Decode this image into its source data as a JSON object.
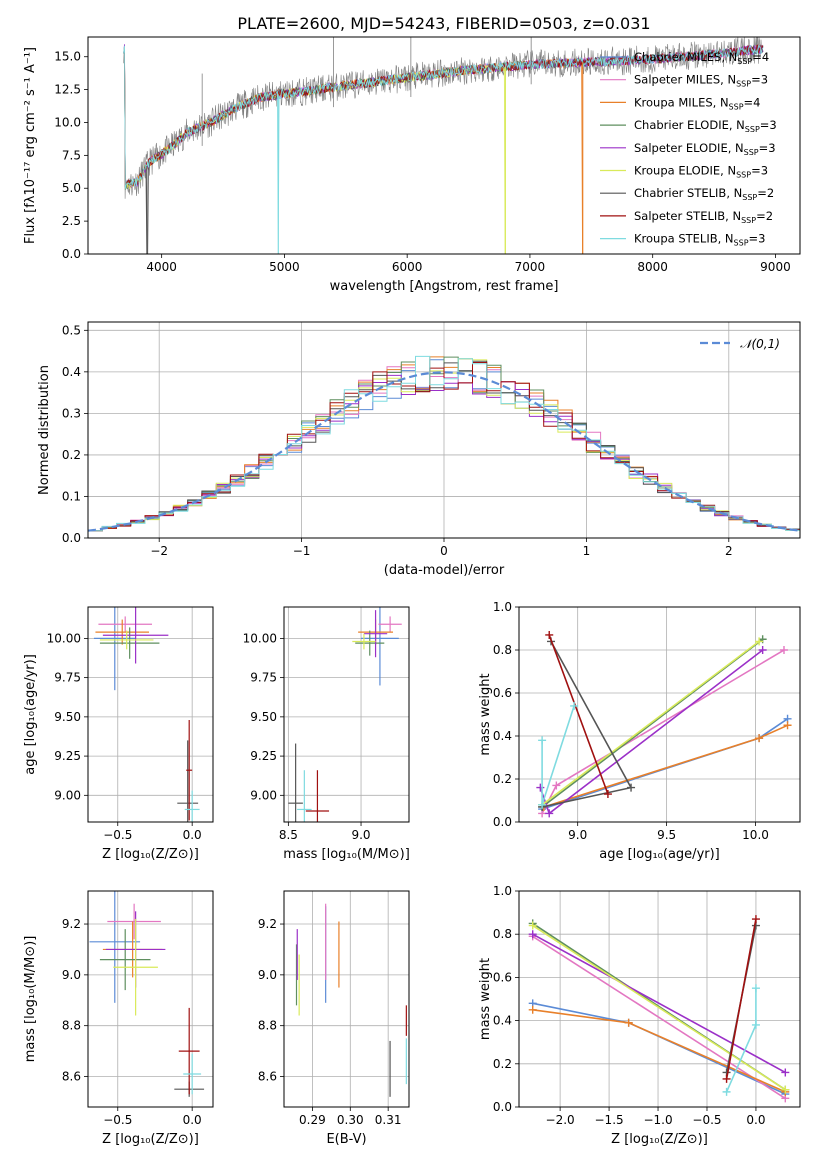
{
  "figure": {
    "title": "PLATE=2600, MJD=54243, FIBERID=0503, z=0.031"
  },
  "colors": {
    "Chabrier MILES": "#5b8bd6",
    "Salpeter MILES": "#e377c2",
    "Kroupa MILES": "#e8802a",
    "Chabrier ELODIE": "#5f8f5f",
    "Salpeter ELODIE": "#9b30c8",
    "Kroupa ELODIE": "#d9ea5a",
    "Chabrier STELIB": "#555555",
    "Salpeter STELIB": "#a01010",
    "Kroupa STELIB": "#7fdbe0",
    "data": "#808080",
    "normal": "#5b8bd6"
  },
  "chart_data": [
    {
      "type": "line",
      "title": "PLATE=2600, MJD=54243, FIBERID=0503, z=0.031",
      "xlabel": "wavelength [Angstrom, rest frame]",
      "ylabel": "Flux [fλ10⁻¹⁷ erg cm⁻² s⁻¹ A⁻¹]",
      "xlim": [
        3400,
        9200
      ],
      "ylim": [
        0,
        16.5
      ],
      "xticks": [
        4000,
        5000,
        6000,
        7000,
        8000,
        9000
      ],
      "yticks": [
        0.0,
        2.5,
        5.0,
        7.5,
        10.0,
        12.5,
        15.0
      ],
      "legend_position": "top-right",
      "legend": [
        {
          "label": "Chabrier MILES, N",
          "sub": "SSP",
          "tail": "=4",
          "key": "Chabrier MILES"
        },
        {
          "label": "Salpeter MILES, N",
          "sub": "SSP",
          "tail": "=3",
          "key": "Salpeter MILES"
        },
        {
          "label": "Kroupa MILES, N",
          "sub": "SSP",
          "tail": "=4",
          "key": "Kroupa MILES"
        },
        {
          "label": "Chabrier ELODIE, N",
          "sub": "SSP",
          "tail": "=3",
          "key": "Chabrier ELODIE"
        },
        {
          "label": "Salpeter ELODIE, N",
          "sub": "SSP",
          "tail": "=3",
          "key": "Salpeter ELODIE"
        },
        {
          "label": "Kroupa ELODIE, N",
          "sub": "SSP",
          "tail": "=3",
          "key": "Kroupa ELODIE"
        },
        {
          "label": "Chabrier STELIB, N",
          "sub": "SSP",
          "tail": "=2",
          "key": "Chabrier STELIB"
        },
        {
          "label": "Salpeter STELIB, N",
          "sub": "SSP",
          "tail": "=2",
          "key": "Salpeter STELIB"
        },
        {
          "label": "Kroupa STELIB, N",
          "sub": "SSP",
          "tail": "=3",
          "key": "Kroupa STELIB"
        }
      ],
      "continuum": [
        [
          3700,
          5.2
        ],
        [
          3800,
          5.5
        ],
        [
          3900,
          7.0
        ],
        [
          4000,
          7.6
        ],
        [
          4100,
          8.3
        ],
        [
          4200,
          9.2
        ],
        [
          4400,
          10.0
        ],
        [
          4600,
          11.1
        ],
        [
          4800,
          11.9
        ],
        [
          5000,
          12.2
        ],
        [
          5200,
          12.4
        ],
        [
          5500,
          12.8
        ],
        [
          6000,
          13.4
        ],
        [
          6500,
          14.0
        ],
        [
          7000,
          14.4
        ],
        [
          7500,
          14.6
        ],
        [
          8000,
          14.8
        ],
        [
          8500,
          15.2
        ],
        [
          8900,
          15.6
        ]
      ],
      "sharp_dips": [
        {
          "x": 3880,
          "y": 0.0,
          "series": "Chabrier STELIB"
        },
        {
          "x": 4950,
          "y": 0.0,
          "series": "Kroupa STELIB"
        },
        {
          "x": 6800,
          "y": 0.0,
          "series": "Kroupa ELODIE"
        },
        {
          "x": 7430,
          "y": 0.0,
          "series": "Kroupa MILES"
        }
      ],
      "model_end": {
        "Kroupa STELIB": 8900,
        "Kroupa ELODIE": 6800,
        "Kroupa MILES": 7430
      }
    },
    {
      "type": "histogram",
      "xlabel": "(data-model)/error",
      "ylabel": "Normed distribution",
      "xlim": [
        -2.5,
        2.5
      ],
      "ylim": [
        0,
        0.52
      ],
      "xticks": [
        -2,
        -1,
        0,
        1,
        2
      ],
      "yticks": [
        0.0,
        0.1,
        0.2,
        0.3,
        0.4,
        0.5
      ],
      "bin_width": 0.1,
      "envelope": "gaussian",
      "legend": [
        {
          "label": "𝒩(0,1)",
          "style": "dashed",
          "key": "normal"
        }
      ],
      "legend_position": "top-right"
    },
    {
      "type": "scatter",
      "xlabel": "Z [log₁₀(Z/Z⊙)]",
      "ylabel": "age  [log₁₀(age/yr)]",
      "xlim": [
        -0.7,
        0.14
      ],
      "ylim": [
        8.83,
        10.2
      ],
      "xticks": [
        -0.5,
        0.0
      ],
      "yticks": [
        9.0,
        9.25,
        9.5,
        9.75,
        10.0
      ],
      "points": [
        {
          "series": "Chabrier MILES",
          "x": -0.52,
          "y": 10.0,
          "xerr": 0.14,
          "yerr": 0.33
        },
        {
          "series": "Salpeter MILES",
          "x": -0.45,
          "y": 10.09,
          "xerr": 0.18,
          "yerr": 0.05
        },
        {
          "series": "Kroupa MILES",
          "x": -0.47,
          "y": 10.04,
          "xerr": 0.18,
          "yerr": 0.08
        },
        {
          "series": "Chabrier ELODIE",
          "x": -0.42,
          "y": 9.97,
          "xerr": 0.2,
          "yerr": 0.1
        },
        {
          "series": "Salpeter ELODIE",
          "x": -0.38,
          "y": 10.02,
          "xerr": 0.22,
          "yerr": 0.18
        },
        {
          "series": "Kroupa ELODIE",
          "x": -0.44,
          "y": 9.99,
          "xerr": 0.18,
          "yerr": 0.06
        },
        {
          "series": "Chabrier STELIB",
          "x": -0.03,
          "y": 8.95,
          "xerr": 0.07,
          "yerr": 0.4
        },
        {
          "series": "Salpeter STELIB",
          "x": -0.02,
          "y": 9.16,
          "xerr": 0.02,
          "yerr": 0.32
        },
        {
          "series": "Kroupa STELIB",
          "x": 0.0,
          "y": 8.91,
          "xerr": 0.05,
          "yerr": 0.12
        }
      ]
    },
    {
      "type": "scatter",
      "xlabel": "mass [log₁₀(M/M⊙)]",
      "ylabel": "",
      "xlim": [
        8.47,
        9.33
      ],
      "ylim": [
        8.83,
        10.2
      ],
      "xticks": [
        8.5,
        9.0
      ],
      "yticks": [
        9.0,
        9.25,
        9.5,
        9.75,
        10.0
      ],
      "points": [
        {
          "series": "Chabrier MILES",
          "x": 9.13,
          "y": 10.0,
          "xerr": 0.13,
          "yerr": 0.3
        },
        {
          "series": "Salpeter MILES",
          "x": 9.2,
          "y": 10.09,
          "xerr": 0.08,
          "yerr": 0.05
        },
        {
          "series": "Kroupa MILES",
          "x": 9.1,
          "y": 10.04,
          "xerr": 0.12,
          "yerr": 0.08
        },
        {
          "series": "Chabrier ELODIE",
          "x": 9.06,
          "y": 9.97,
          "xerr": 0.1,
          "yerr": 0.08
        },
        {
          "series": "Salpeter ELODIE",
          "x": 9.1,
          "y": 10.03,
          "xerr": 0.08,
          "yerr": 0.15
        },
        {
          "series": "Kroupa ELODIE",
          "x": 9.02,
          "y": 9.98,
          "xerr": 0.08,
          "yerr": 0.05
        },
        {
          "series": "Chabrier STELIB",
          "x": 8.55,
          "y": 8.95,
          "xerr": 0.05,
          "yerr": 0.38
        },
        {
          "series": "Salpeter STELIB",
          "x": 8.7,
          "y": 8.9,
          "xerr": 0.08,
          "yerr": 0.26
        },
        {
          "series": "Kroupa STELIB",
          "x": 8.61,
          "y": 8.91,
          "xerr": 0.05,
          "yerr": 0.25
        }
      ]
    },
    {
      "type": "line",
      "xlabel": "age  [log₁₀(age/yr)]",
      "ylabel": "mass weight",
      "xlim": [
        8.67,
        10.25
      ],
      "ylim": [
        0,
        1.0
      ],
      "xticks": [
        9.0,
        9.5,
        10.0
      ],
      "yticks": [
        0.0,
        0.2,
        0.4,
        0.6,
        0.8,
        1.0
      ],
      "series": [
        {
          "name": "Chabrier MILES",
          "points": [
            [
              8.8,
              0.06
            ],
            [
              10.02,
              0.39
            ],
            [
              10.18,
              0.48
            ]
          ]
        },
        {
          "name": "Salpeter MILES",
          "points": [
            [
              8.8,
              0.04
            ],
            [
              8.88,
              0.17
            ],
            [
              10.16,
              0.8
            ]
          ]
        },
        {
          "name": "Kroupa MILES",
          "points": [
            [
              8.81,
              0.07
            ],
            [
              10.02,
              0.39
            ],
            [
              10.18,
              0.45
            ]
          ]
        },
        {
          "name": "Chabrier ELODIE",
          "points": [
            [
              8.8,
              0.07
            ],
            [
              10.04,
              0.85
            ]
          ]
        },
        {
          "name": "Salpeter ELODIE",
          "points": [
            [
              8.79,
              0.16
            ],
            [
              8.84,
              0.04
            ],
            [
              10.04,
              0.8
            ]
          ]
        },
        {
          "name": "Kroupa ELODIE",
          "points": [
            [
              8.8,
              0.08
            ],
            [
              10.02,
              0.84
            ]
          ]
        },
        {
          "name": "Chabrier STELIB",
          "points": [
            [
              8.85,
              0.84
            ],
            [
              9.3,
              0.16
            ],
            [
              8.8,
              0.07
            ]
          ]
        },
        {
          "name": "Salpeter STELIB",
          "points": [
            [
              8.84,
              0.87
            ],
            [
              9.17,
              0.13
            ]
          ]
        },
        {
          "name": "Kroupa STELIB",
          "points": [
            [
              8.8,
              0.38
            ],
            [
              8.8,
              0.08
            ],
            [
              8.98,
              0.54
            ]
          ]
        }
      ]
    },
    {
      "type": "scatter",
      "xlabel": "Z [log₁₀(Z/Z⊙)]",
      "ylabel": "mass [log₁₀(M/M⊙)]",
      "xlim": [
        -0.7,
        0.14
      ],
      "ylim": [
        8.48,
        9.33
      ],
      "xticks": [
        -0.5,
        0.0
      ],
      "yticks": [
        8.6,
        8.8,
        9.0,
        9.2
      ],
      "points": [
        {
          "series": "Chabrier MILES",
          "x": -0.52,
          "y": 9.13,
          "xerr": 0.17,
          "yerr": 0.24
        },
        {
          "series": "Salpeter MILES",
          "x": -0.39,
          "y": 9.21,
          "xerr": 0.18,
          "yerr": 0.07
        },
        {
          "series": "Kroupa MILES",
          "x": -0.4,
          "y": 9.1,
          "xerr": 0.2,
          "yerr": 0.11
        },
        {
          "series": "Chabrier ELODIE",
          "x": -0.45,
          "y": 9.06,
          "xerr": 0.17,
          "yerr": 0.12
        },
        {
          "series": "Salpeter ELODIE",
          "x": -0.38,
          "y": 9.1,
          "xerr": 0.2,
          "yerr": 0.15
        },
        {
          "series": "Kroupa ELODIE",
          "x": -0.38,
          "y": 9.03,
          "xerr": 0.15,
          "yerr": 0.19
        },
        {
          "series": "Chabrier STELIB",
          "x": -0.02,
          "y": 8.55,
          "xerr": 0.1,
          "yerr": 0.03
        },
        {
          "series": "Salpeter STELIB",
          "x": -0.02,
          "y": 8.7,
          "xerr": 0.07,
          "yerr": 0.17
        },
        {
          "series": "Kroupa STELIB",
          "x": 0.0,
          "y": 8.61,
          "xerr": 0.06,
          "yerr": 0.08
        }
      ]
    },
    {
      "type": "scatter",
      "xlabel": "E(B-V)",
      "ylabel": "",
      "xlim": [
        0.2825,
        0.3155
      ],
      "ylim": [
        8.48,
        9.33
      ],
      "xticks": [
        0.29,
        0.3,
        0.31
      ],
      "xtick_labels": [
        "0.29",
        "0.30",
        "0.31"
      ],
      "yticks": [
        8.6,
        8.8,
        9.0,
        9.2
      ],
      "points": [
        {
          "series": "Chabrier MILES",
          "x": 0.2935,
          "y": 9.08,
          "xerr": 0.0,
          "yerr": 0.19
        },
        {
          "series": "Salpeter MILES",
          "x": 0.2935,
          "y": 9.13,
          "xerr": 0.0,
          "yerr": 0.15
        },
        {
          "series": "Kroupa MILES",
          "x": 0.297,
          "y": 9.08,
          "xerr": 0.0,
          "yerr": 0.13
        },
        {
          "series": "Chabrier ELODIE",
          "x": 0.2858,
          "y": 9.0,
          "xerr": 0.0,
          "yerr": 0.12
        },
        {
          "series": "Salpeter ELODIE",
          "x": 0.286,
          "y": 9.08,
          "xerr": 0.0,
          "yerr": 0.1
        },
        {
          "series": "Kroupa ELODIE",
          "x": 0.2865,
          "y": 8.96,
          "xerr": 0.0,
          "yerr": 0.12
        },
        {
          "series": "Chabrier STELIB",
          "x": 0.3105,
          "y": 8.63,
          "xerr": 0.0,
          "yerr": 0.11
        },
        {
          "series": "Salpeter STELIB",
          "x": 0.3148,
          "y": 8.82,
          "xerr": 0.0,
          "yerr": 0.06
        },
        {
          "series": "Kroupa STELIB",
          "x": 0.3148,
          "y": 8.66,
          "xerr": 0.0,
          "yerr": 0.09
        }
      ]
    },
    {
      "type": "line",
      "xlabel": "Z [log₁₀(Z/Z⊙)]",
      "ylabel": "mass weight",
      "xlim": [
        -2.42,
        0.45
      ],
      "ylim": [
        0,
        1.0
      ],
      "xticks": [
        -2.0,
        -1.5,
        -1.0,
        -0.5,
        0.0
      ],
      "yticks": [
        0.0,
        0.2,
        0.4,
        0.6,
        0.8,
        1.0
      ],
      "series": [
        {
          "name": "Chabrier MILES",
          "points": [
            [
              -2.28,
              0.48
            ],
            [
              -1.3,
              0.39
            ],
            [
              0.3,
              0.06
            ]
          ]
        },
        {
          "name": "Salpeter MILES",
          "points": [
            [
              -2.28,
              0.79
            ],
            [
              0.3,
              0.04
            ]
          ]
        },
        {
          "name": "Kroupa MILES",
          "points": [
            [
              -2.28,
              0.45
            ],
            [
              -1.3,
              0.39
            ],
            [
              0.3,
              0.07
            ]
          ]
        },
        {
          "name": "Chabrier ELODIE",
          "points": [
            [
              -2.28,
              0.85
            ],
            [
              0.3,
              0.08
            ]
          ]
        },
        {
          "name": "Salpeter ELODIE",
          "points": [
            [
              -2.28,
              0.8
            ],
            [
              0.3,
              0.16
            ]
          ]
        },
        {
          "name": "Kroupa ELODIE",
          "points": [
            [
              -2.28,
              0.84
            ],
            [
              0.3,
              0.08
            ]
          ]
        },
        {
          "name": "Chabrier STELIB",
          "points": [
            [
              -0.3,
              0.16
            ],
            [
              0.0,
              0.84
            ]
          ]
        },
        {
          "name": "Salpeter STELIB",
          "points": [
            [
              -0.3,
              0.13
            ],
            [
              0.0,
              0.87
            ]
          ]
        },
        {
          "name": "Kroupa STELIB",
          "points": [
            [
              -0.3,
              0.07
            ],
            [
              0.0,
              0.38
            ],
            [
              0.0,
              0.55
            ]
          ]
        }
      ]
    }
  ]
}
